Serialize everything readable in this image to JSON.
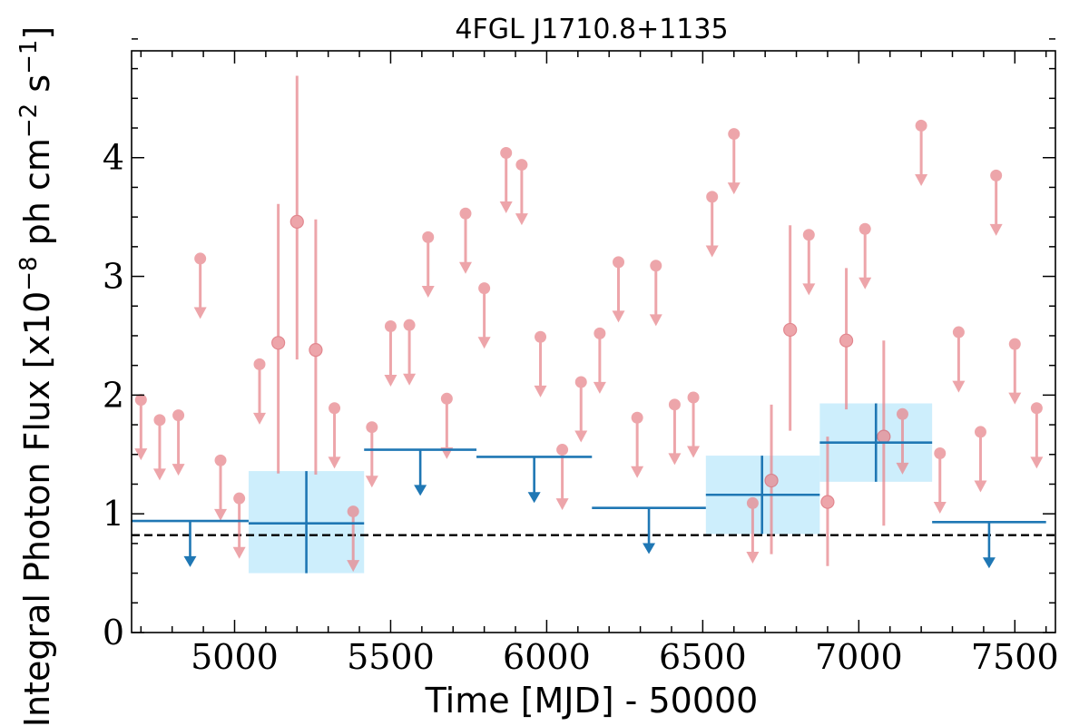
{
  "chart_data": {
    "type": "scatter",
    "title": "4FGL J1710.8+1135",
    "xlabel": "Time [MJD] - 50000",
    "ylabel_parts": {
      "prefix": "Integral Photon Flux [x10",
      "exp1": "−8",
      "mid": " ph cm",
      "exp2": "−2",
      "mid2": " s",
      "exp3": "−1",
      "suffix": "]"
    },
    "xlim": [
      4670,
      7630
    ],
    "ylim": [
      0,
      4.9
    ],
    "xticks": [
      5000,
      5500,
      6000,
      6500,
      7000,
      7500
    ],
    "yticks": [
      0,
      1,
      2,
      3,
      4
    ],
    "x_minor_step": 100,
    "y_minor_step": 0.25,
    "grid": false,
    "reference_level": 0.82,
    "colors": {
      "fine": "#e8888e",
      "coarse": "#1f77b4",
      "coarse_band": "#cdeefc",
      "reference": "#000000"
    },
    "fine_bins": {
      "upper_limits": [
        {
          "x": 4700,
          "y": 1.96
        },
        {
          "x": 4760,
          "y": 1.79
        },
        {
          "x": 4820,
          "y": 1.83
        },
        {
          "x": 4890,
          "y": 3.15
        },
        {
          "x": 4955,
          "y": 1.45
        },
        {
          "x": 5015,
          "y": 1.13
        },
        {
          "x": 5080,
          "y": 2.26
        },
        {
          "x": 5320,
          "y": 1.89
        },
        {
          "x": 5380,
          "y": 1.02
        },
        {
          "x": 5440,
          "y": 1.73
        },
        {
          "x": 5500,
          "y": 2.58
        },
        {
          "x": 5560,
          "y": 2.59
        },
        {
          "x": 5620,
          "y": 3.33
        },
        {
          "x": 5680,
          "y": 1.97
        },
        {
          "x": 5740,
          "y": 3.53
        },
        {
          "x": 5800,
          "y": 2.9
        },
        {
          "x": 5870,
          "y": 4.04
        },
        {
          "x": 5920,
          "y": 3.94
        },
        {
          "x": 5980,
          "y": 2.49
        },
        {
          "x": 6050,
          "y": 1.54
        },
        {
          "x": 6110,
          "y": 2.11
        },
        {
          "x": 6170,
          "y": 2.52
        },
        {
          "x": 6230,
          "y": 3.12
        },
        {
          "x": 6290,
          "y": 1.81
        },
        {
          "x": 6350,
          "y": 3.09
        },
        {
          "x": 6410,
          "y": 1.92
        },
        {
          "x": 6470,
          "y": 1.98
        },
        {
          "x": 6530,
          "y": 3.67
        },
        {
          "x": 6600,
          "y": 4.2
        },
        {
          "x": 6660,
          "y": 1.09
        },
        {
          "x": 6840,
          "y": 3.35
        },
        {
          "x": 7020,
          "y": 3.4
        },
        {
          "x": 7140,
          "y": 1.84
        },
        {
          "x": 7200,
          "y": 4.27
        },
        {
          "x": 7260,
          "y": 1.51
        },
        {
          "x": 7320,
          "y": 2.53
        },
        {
          "x": 7390,
          "y": 1.69
        },
        {
          "x": 7440,
          "y": 3.85
        },
        {
          "x": 7500,
          "y": 2.43
        },
        {
          "x": 7570,
          "y": 1.89
        }
      ],
      "detections": [
        {
          "x": 5140,
          "y": 2.44,
          "err_low": 1.1,
          "err_high": 1.17
        },
        {
          "x": 5200,
          "y": 3.46,
          "err_low": 1.16,
          "err_high": 1.23
        },
        {
          "x": 5260,
          "y": 2.38,
          "err_low": 1.05,
          "err_high": 1.1
        },
        {
          "x": 6720,
          "y": 1.28,
          "err_low": 0.62,
          "err_high": 0.64
        },
        {
          "x": 6780,
          "y": 2.55,
          "err_low": 0.85,
          "err_high": 0.88
        },
        {
          "x": 6900,
          "y": 1.1,
          "err_low": 0.54,
          "err_high": 0.55
        },
        {
          "x": 6960,
          "y": 2.46,
          "err_low": 0.58,
          "err_high": 0.61
        },
        {
          "x": 7080,
          "y": 1.65,
          "err_low": 0.75,
          "err_high": 0.81
        }
      ]
    },
    "coarse_bins": {
      "upper_limits": [
        {
          "x0": 4670,
          "x1": 5045,
          "y": 0.94
        },
        {
          "x0": 5415,
          "x1": 5775,
          "y": 1.54
        },
        {
          "x0": 5775,
          "x1": 6145,
          "y": 1.48
        },
        {
          "x0": 6145,
          "x1": 6510,
          "y": 1.05
        },
        {
          "x0": 7235,
          "x1": 7600,
          "y": 0.93
        }
      ],
      "detections": [
        {
          "x0": 5045,
          "x1": 5415,
          "x": 5230,
          "y": 0.92,
          "err_low": 0.42,
          "err_high": 0.44
        },
        {
          "x0": 6510,
          "x1": 6875,
          "x": 6690,
          "y": 1.16,
          "err_low": 0.33,
          "err_high": 0.33
        },
        {
          "x0": 6875,
          "x1": 7235,
          "x": 7055,
          "y": 1.6,
          "err_low": 0.33,
          "err_high": 0.33
        }
      ]
    }
  }
}
